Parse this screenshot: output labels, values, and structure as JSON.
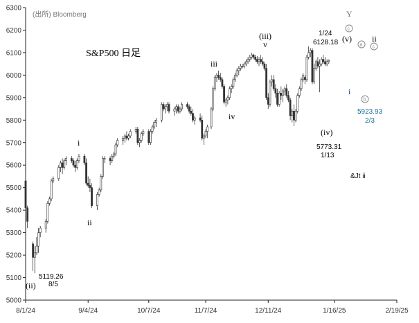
{
  "chart_data": {
    "type": "candlestick",
    "title": "S&P500 日足",
    "source": "(出所) Bloomberg",
    "ylim": [
      5000,
      6300
    ],
    "y_ticks": [
      "5000",
      "5100",
      "5200",
      "5300",
      "5400",
      "5500",
      "5600",
      "5700",
      "5800",
      "5900",
      "6000",
      "6100",
      "6200",
      "6300"
    ],
    "x_tick_labels": [
      "8/1/24",
      "9/4/24",
      "10/7/24",
      "11/7/24",
      "12/11/24",
      "1/16/25",
      "2/19/25"
    ],
    "x_tick_days": [
      0,
      34,
      67,
      98,
      132,
      168,
      202
    ],
    "colors": {
      "up": "#ffffff",
      "down": "#333333",
      "wick": "#333333",
      "outline": "#333333",
      "axis": "#222222",
      "blue_text": "#1a6f9a"
    },
    "candles": [
      [
        0,
        5530,
        5560,
        5380,
        5410
      ],
      [
        1,
        5410,
        5420,
        5320,
        5350
      ],
      [
        4,
        5250,
        5260,
        5130,
        5190
      ],
      [
        5,
        5190,
        5240,
        5119.26,
        5210
      ],
      [
        6,
        5210,
        5280,
        5200,
        5240
      ],
      [
        7,
        5240,
        5320,
        5210,
        5300
      ],
      [
        8,
        5300,
        5330,
        5280,
        5320
      ],
      [
        11,
        5320,
        5360,
        5300,
        5350
      ],
      [
        12,
        5350,
        5440,
        5340,
        5430
      ],
      [
        13,
        5430,
        5460,
        5420,
        5450
      ],
      [
        14,
        5450,
        5540,
        5440,
        5530
      ],
      [
        15,
        5530,
        5550,
        5520,
        5540
      ],
      [
        18,
        5540,
        5600,
        5530,
        5590
      ],
      [
        19,
        5590,
        5620,
        5570,
        5610
      ],
      [
        20,
        5610,
        5630,
        5560,
        5590
      ],
      [
        21,
        5590,
        5630,
        5580,
        5620
      ],
      [
        22,
        5620,
        5640,
        5600,
        5630
      ],
      [
        25,
        5630,
        5640,
        5610,
        5620
      ],
      [
        26,
        5620,
        5630,
        5590,
        5600
      ],
      [
        27,
        5600,
        5620,
        5570,
        5590
      ],
      [
        28,
        5590,
        5630,
        5580,
        5620
      ],
      [
        29,
        5620,
        5650,
        5610,
        5640
      ],
      [
        32,
        5640,
        5650,
        5600,
        5610
      ],
      [
        33,
        5610,
        5630,
        5510,
        5520
      ],
      [
        34,
        5520,
        5550,
        5500,
        5510
      ],
      [
        35,
        5510,
        5540,
        5480,
        5500
      ],
      [
        36,
        5500,
        5520,
        5410,
        5420
      ],
      [
        39,
        5420,
        5480,
        5400,
        5470
      ],
      [
        40,
        5470,
        5500,
        5460,
        5490
      ],
      [
        41,
        5490,
        5560,
        5480,
        5550
      ],
      [
        42,
        5550,
        5640,
        5540,
        5630
      ],
      [
        43,
        5630,
        5640,
        5610,
        5630
      ],
      [
        46,
        5630,
        5640,
        5600,
        5620
      ],
      [
        47,
        5620,
        5650,
        5610,
        5640
      ],
      [
        48,
        5640,
        5660,
        5630,
        5650
      ],
      [
        49,
        5650,
        5700,
        5640,
        5690
      ],
      [
        50,
        5690,
        5720,
        5680,
        5710
      ],
      [
        53,
        5710,
        5730,
        5690,
        5720
      ],
      [
        54,
        5720,
        5740,
        5700,
        5730
      ],
      [
        55,
        5730,
        5750,
        5710,
        5720
      ],
      [
        56,
        5720,
        5740,
        5710,
        5730
      ],
      [
        57,
        5730,
        5760,
        5720,
        5750
      ],
      [
        60,
        5750,
        5770,
        5740,
        5760
      ],
      [
        61,
        5760,
        5770,
        5690,
        5700
      ],
      [
        62,
        5700,
        5720,
        5680,
        5710
      ],
      [
        63,
        5710,
        5750,
        5700,
        5740
      ],
      [
        64,
        5740,
        5760,
        5730,
        5750
      ],
      [
        67,
        5750,
        5760,
        5690,
        5700
      ],
      [
        68,
        5700,
        5760,
        5690,
        5750
      ],
      [
        69,
        5750,
        5780,
        5740,
        5770
      ],
      [
        70,
        5770,
        5800,
        5760,
        5790
      ],
      [
        71,
        5790,
        5810,
        5770,
        5800
      ],
      [
        74,
        5800,
        5880,
        5790,
        5870
      ],
      [
        75,
        5870,
        5880,
        5840,
        5850
      ],
      [
        76,
        5850,
        5870,
        5830,
        5860
      ],
      [
        77,
        5860,
        5880,
        5840,
        5870
      ],
      [
        78,
        5870,
        5880,
        5830,
        5840
      ],
      [
        81,
        5840,
        5860,
        5820,
        5850
      ],
      [
        82,
        5850,
        5870,
        5830,
        5860
      ],
      [
        83,
        5860,
        5870,
        5830,
        5840
      ],
      [
        84,
        5840,
        5860,
        5830,
        5850
      ],
      [
        85,
        5850,
        5880,
        5840,
        5870
      ],
      [
        88,
        5870,
        5880,
        5850,
        5860
      ],
      [
        89,
        5860,
        5870,
        5830,
        5840
      ],
      [
        90,
        5840,
        5860,
        5820,
        5830
      ],
      [
        91,
        5830,
        5850,
        5790,
        5800
      ],
      [
        92,
        5800,
        5820,
        5780,
        5810
      ],
      [
        95,
        5810,
        5830,
        5790,
        5800
      ],
      [
        96,
        5800,
        5820,
        5710,
        5720
      ],
      [
        97,
        5720,
        5740,
        5690,
        5730
      ],
      [
        98,
        5730,
        5760,
        5720,
        5750
      ],
      [
        99,
        5750,
        5780,
        5720,
        5770
      ],
      [
        101,
        5770,
        5860,
        5760,
        5850
      ],
      [
        102,
        5850,
        5950,
        5840,
        5940
      ],
      [
        103,
        5940,
        6000,
        5930,
        5990
      ],
      [
        104,
        5990,
        6010,
        5970,
        6000
      ],
      [
        105,
        6000,
        6020,
        5980,
        5990
      ],
      [
        106,
        5990,
        6010,
        5970,
        5980
      ],
      [
        107,
        5980,
        5990,
        5940,
        5950
      ],
      [
        108,
        5950,
        5960,
        5870,
        5880
      ],
      [
        109,
        5880,
        5900,
        5860,
        5890
      ],
      [
        110,
        5890,
        5910,
        5870,
        5900
      ],
      [
        111,
        5900,
        5950,
        5890,
        5940
      ],
      [
        112,
        5940,
        5960,
        5920,
        5950
      ],
      [
        113,
        5950,
        5990,
        5940,
        5980
      ],
      [
        114,
        5980,
        6010,
        5970,
        6000
      ],
      [
        115,
        6000,
        6030,
        5990,
        6020
      ],
      [
        116,
        6020,
        6040,
        6000,
        6030
      ],
      [
        117,
        6030,
        6050,
        6020,
        6040
      ],
      [
        118,
        6040,
        6050,
        6030,
        6040
      ],
      [
        119,
        6040,
        6060,
        6030,
        6050
      ],
      [
        120,
        6050,
        6070,
        6040,
        6060
      ],
      [
        121,
        6060,
        6080,
        6050,
        6070
      ],
      [
        122,
        6070,
        6090,
        6060,
        6080
      ],
      [
        123,
        6080,
        6100,
        6070,
        6090
      ],
      [
        124,
        6090,
        6095,
        6070,
        6080
      ],
      [
        125,
        6080,
        6090,
        6060,
        6070
      ],
      [
        126,
        6070,
        6085,
        6050,
        6060
      ],
      [
        127,
        6060,
        6080,
        6040,
        6070
      ],
      [
        128,
        6070,
        6090,
        6050,
        6060
      ],
      [
        129,
        6060,
        6080,
        6040,
        6050
      ],
      [
        130,
        6050,
        6060,
        6020,
        6030
      ],
      [
        131,
        6030,
        6050,
        5890,
        5900
      ],
      [
        132,
        5900,
        5920,
        5850,
        5870
      ],
      [
        133,
        5870,
        5980,
        5860,
        5970
      ],
      [
        134,
        5970,
        6000,
        5950,
        5980
      ],
      [
        135,
        5980,
        6000,
        5930,
        5940
      ],
      [
        136,
        5940,
        5960,
        5900,
        5920
      ],
      [
        137,
        5920,
        5940,
        5860,
        5870
      ],
      [
        138,
        5870,
        5930,
        5860,
        5920
      ],
      [
        139,
        5920,
        5950,
        5890,
        5910
      ],
      [
        140,
        5910,
        5940,
        5880,
        5930
      ],
      [
        141,
        5930,
        5950,
        5910,
        5940
      ],
      [
        142,
        5940,
        5960,
        5900,
        5910
      ],
      [
        143,
        5910,
        5930,
        5880,
        5890
      ],
      [
        144,
        5890,
        5900,
        5800,
        5820
      ],
      [
        145,
        5820,
        5850,
        5790,
        5840
      ],
      [
        146,
        5840,
        5870,
        5773.31,
        5800
      ],
      [
        147,
        5800,
        5850,
        5790,
        5840
      ],
      [
        148,
        5840,
        5920,
        5830,
        5910
      ],
      [
        149,
        5910,
        5950,
        5900,
        5940
      ],
      [
        150,
        5940,
        5990,
        5930,
        5980
      ],
      [
        151,
        5980,
        6010,
        5970,
        6000
      ],
      [
        152,
        5990,
        6000,
        5960,
        5980
      ],
      [
        153,
        5980,
        6090,
        5970,
        6080
      ],
      [
        154,
        6080,
        6128.18,
        6070,
        6100
      ],
      [
        155,
        6100,
        6120,
        6080,
        6110
      ],
      [
        156,
        6110,
        6120,
        5960,
        5970
      ],
      [
        157,
        5970,
        6050,
        5960,
        6030
      ],
      [
        158,
        6030,
        6070,
        6020,
        6060
      ],
      [
        159,
        6060,
        6080,
        6030,
        6040
      ],
      [
        160,
        6040,
        6070,
        5923.93,
        6050
      ],
      [
        161,
        6050,
        6080,
        6040,
        6070
      ],
      [
        162,
        6070,
        6090,
        6050,
        6060
      ],
      [
        163,
        6060,
        6080,
        6040,
        6050
      ],
      [
        164,
        6050,
        6070,
        6040,
        6060
      ],
      [
        165,
        6060,
        6070,
        6050,
        6065
      ]
    ],
    "annotations": {
      "wave_i_top": "i",
      "wave_ii_bottom": "ii",
      "wave_ii_paren": "(ii)",
      "low_aug_value": "5119.26",
      "low_aug_date": "8/5",
      "wave_iii_mid": "iii",
      "wave_iv_mid": "iv",
      "wave_iii_paren": "(iii)",
      "wave_v_mark": "v",
      "peak_date": "1/24",
      "peak_value": "6128.18",
      "wave_v_paren": "(v)",
      "wave_iv_paren": "(iv)",
      "low_jan_value": "5773.31",
      "low_jan_date": "1/13",
      "wave_y": "Y",
      "circle_c_top": "c",
      "circle_a": "a",
      "circle_c": "c",
      "circle_b": "b",
      "wave_ii_right": "ii",
      "wave_i_right": "i",
      "low_feb_value": "5923.93",
      "low_feb_date": "2/3",
      "label_ajt_ii": "&Jt ii"
    }
  }
}
